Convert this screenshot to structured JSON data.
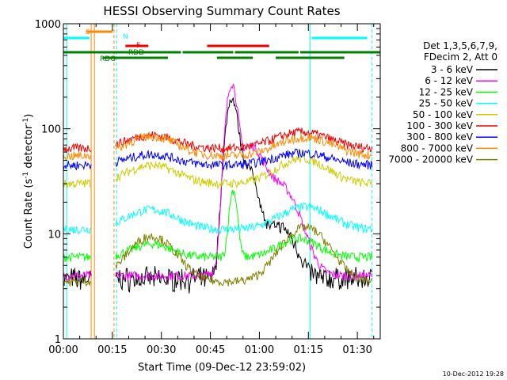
{
  "chart_data": {
    "type": "line",
    "title": "HESSI Observing Summary Count Rates",
    "xlabel": "Start Time (09-Dec-12 23:59:02)",
    "ylabel_main": "Count Rate (s",
    "ylabel_sup1": "-1",
    "ylabel_mid": " detector",
    "ylabel_sup2": "-1",
    "ylabel_end": ")",
    "y_scale": "log",
    "ylim": [
      1,
      1000
    ],
    "xlim_minutes": [
      0,
      97
    ],
    "x_ticks": [
      {
        "m": 0,
        "label": "00:00"
      },
      {
        "m": 15,
        "label": "00:15"
      },
      {
        "m": 30,
        "label": "00:30"
      },
      {
        "m": 45,
        "label": "00:45"
      },
      {
        "m": 60,
        "label": "01:00"
      },
      {
        "m": 75,
        "label": "01:15"
      },
      {
        "m": 90,
        "label": "01:30"
      }
    ],
    "y_ticks": [
      {
        "v": 1,
        "label": "1"
      },
      {
        "v": 10,
        "label": "10"
      },
      {
        "v": 100,
        "label": "100"
      },
      {
        "v": 1000,
        "label": "1000"
      }
    ],
    "legend_title_1": "Det 1,3,5,6,7,9,",
    "legend_title_2": "FDecim 2, Att 0",
    "series": [
      {
        "name": "3 - 6 keV",
        "color": "#000000"
      },
      {
        "name": "6 - 12 keV",
        "color": "#ff00ff"
      },
      {
        "name": "12 - 25 keV",
        "color": "#00ff00"
      },
      {
        "name": "25 - 50 keV",
        "color": "#00ffff"
      },
      {
        "name": "50 - 100 keV",
        "color": "#cccc00"
      },
      {
        "name": "100 - 300 keV",
        "color": "#ee0000"
      },
      {
        "name": "300 - 800 keV",
        "color": "#0000ff"
      },
      {
        "name": "800 - 7000 keV",
        "color": "#ff8800"
      },
      {
        "name": "7000 - 20000 keV",
        "color": "#808000"
      }
    ],
    "flags": [
      {
        "label": "S",
        "color": "#ff8800"
      },
      {
        "label": "N",
        "color": "#00ffff"
      },
      {
        "label": "F",
        "color": "#ee0000"
      },
      {
        "label": "RDD",
        "color": "#008000"
      },
      {
        "label": "RDG",
        "color": "#008000"
      }
    ],
    "timestamp": "10-Dec-2012 19:28"
  }
}
